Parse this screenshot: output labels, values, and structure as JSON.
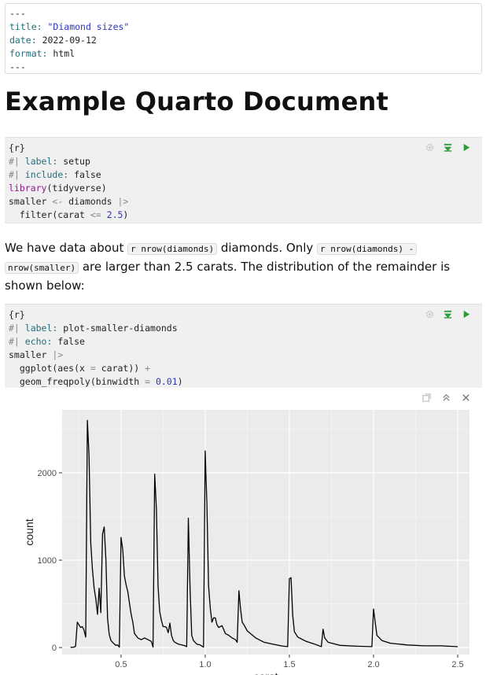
{
  "yaml": {
    "open": "---",
    "close": "---",
    "fields": [
      {
        "key": "title",
        "value": "\"Diamond sizes\"",
        "is_string": true
      },
      {
        "key": "date",
        "value": "2022-09-12",
        "is_string": false
      },
      {
        "key": "format",
        "value": "html",
        "is_string": false
      }
    ]
  },
  "heading": "Example Quarto Document",
  "chunk1": {
    "header": "{r}",
    "opt1_prefix": "#| ",
    "opt1_key": "label:",
    "opt1_val": " setup",
    "opt2_prefix": "#| ",
    "opt2_key": "include:",
    "opt2_val": " false",
    "lib_fn": "library",
    "lib_arg": "(tidyverse)",
    "assign_lhs": "smaller ",
    "assign_op": "<-",
    "assign_rhs": " diamonds ",
    "pipe": "|>",
    "filter_call": "  filter(carat ",
    "filter_op": "<=",
    "filter_num": " 2.5",
    "filter_close": ")"
  },
  "prose": {
    "t1": "We have data about ",
    "c1": "r nrow(diamonds)",
    "t2": " diamonds. Only ",
    "c2a": "r nrow(diamonds) -",
    "c2b": "nrow(smaller)",
    "t3": " are larger than 2.5 carats. The distribution of the remainder is shown below:"
  },
  "chunk2": {
    "header": "{r}",
    "opt1_prefix": "#| ",
    "opt1_key": "label:",
    "opt1_val": " plot-smaller-diamonds",
    "opt2_prefix": "#| ",
    "opt2_key": "echo:",
    "opt2_val": " false",
    "l3_a": "smaller ",
    "l3_pipe": "|>",
    "l4_a": "  ggplot(aes(x ",
    "l4_op": "=",
    "l4_b": " carat)) ",
    "l4_plus": "+",
    "l5_a": "  geom_freqpoly(binwidth ",
    "l5_op": "=",
    "l5_num": " 0.01",
    "l5_close": ")"
  },
  "icons": {
    "settings": "gear-icon",
    "run_above": "run-previous-chunks-icon",
    "run": "run-chunk-icon",
    "expand": "expand-output-icon",
    "collapse": "collapse-output-icon",
    "clear": "clear-output-icon"
  },
  "colors": {
    "run_green": "#2c9b3c",
    "panel_bg": "#ebebeb",
    "grid": "#ffffff"
  },
  "chart_data": {
    "type": "line",
    "title": "",
    "xlabel": "carat",
    "ylabel": "count",
    "xlim": [
      0.15,
      2.57
    ],
    "ylim": [
      -80,
      2720
    ],
    "x_ticks": [
      0.5,
      1.0,
      1.5,
      2.0,
      2.5
    ],
    "x_tick_labels": [
      "0.5",
      "1.0",
      "1.5",
      "2.0",
      "2.5"
    ],
    "y_ticks": [
      0,
      1000,
      2000
    ],
    "y_tick_labels": [
      "0",
      "1000",
      "2000"
    ],
    "grid": true,
    "series": [
      {
        "x": [
          0.2,
          0.22,
          0.23,
          0.24,
          0.25,
          0.26,
          0.27,
          0.28,
          0.29,
          0.3,
          0.31,
          0.32,
          0.33,
          0.34,
          0.35,
          0.36,
          0.37,
          0.38,
          0.39,
          0.4,
          0.41,
          0.42,
          0.43,
          0.44,
          0.45,
          0.46,
          0.47,
          0.48,
          0.49,
          0.5,
          0.51,
          0.52,
          0.53,
          0.54,
          0.55,
          0.56,
          0.57,
          0.58,
          0.6,
          0.62,
          0.64,
          0.66,
          0.68,
          0.69,
          0.7,
          0.71,
          0.72,
          0.73,
          0.74,
          0.75,
          0.76,
          0.77,
          0.78,
          0.79,
          0.8,
          0.81,
          0.82,
          0.84,
          0.86,
          0.88,
          0.89,
          0.9,
          0.91,
          0.92,
          0.93,
          0.95,
          0.97,
          0.99,
          1.0,
          1.01,
          1.02,
          1.03,
          1.04,
          1.05,
          1.06,
          1.07,
          1.08,
          1.1,
          1.12,
          1.14,
          1.16,
          1.18,
          1.19,
          1.2,
          1.21,
          1.22,
          1.23,
          1.25,
          1.3,
          1.35,
          1.4,
          1.45,
          1.49,
          1.5,
          1.51,
          1.52,
          1.53,
          1.55,
          1.6,
          1.65,
          1.69,
          1.7,
          1.71,
          1.73,
          1.8,
          1.9,
          1.99,
          2.0,
          2.01,
          2.02,
          2.05,
          2.1,
          2.2,
          2.3,
          2.4,
          2.5
        ],
        "y": [
          2,
          5,
          15,
          290,
          260,
          230,
          240,
          200,
          120,
          2600,
          2200,
          1200,
          900,
          680,
          560,
          380,
          680,
          400,
          1300,
          1380,
          1000,
          330,
          150,
          80,
          60,
          40,
          25,
          30,
          5,
          1260,
          1120,
          820,
          720,
          640,
          510,
          380,
          290,
          160,
          110,
          90,
          110,
          90,
          70,
          5,
          1985,
          1580,
          700,
          410,
          310,
          240,
          240,
          230,
          170,
          280,
          140,
          80,
          60,
          40,
          30,
          20,
          10,
          1480,
          670,
          140,
          80,
          40,
          30,
          5,
          2250,
          1640,
          710,
          450,
          290,
          340,
          340,
          260,
          230,
          250,
          160,
          140,
          110,
          90,
          60,
          650,
          440,
          290,
          260,
          190,
          110,
          60,
          40,
          20,
          10,
          790,
          800,
          370,
          180,
          120,
          70,
          40,
          10,
          210,
          110,
          60,
          25,
          15,
          10,
          440,
          290,
          140,
          80,
          50,
          30,
          20,
          20,
          10
        ]
      }
    ]
  }
}
